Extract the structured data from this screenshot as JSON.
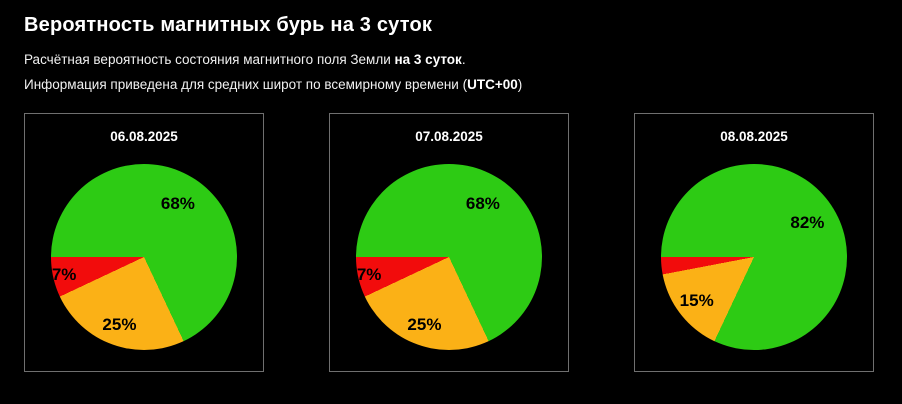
{
  "header": {
    "title": "Вероятность магнитных бурь на 3 суток",
    "line1": {
      "normal": "Расчётная вероятность состояния магнитного поля Земли ",
      "bold": "на 3 суток",
      "tail": "."
    },
    "line2": {
      "normal": "Информация приведена для средних широт по всемирному времени (",
      "bold": "UTC+00",
      "tail": ")"
    }
  },
  "colors": {
    "background": "#000000",
    "panel_border": "#6f6f6f",
    "quiet_green": "#2DCB14",
    "disturbed_orange": "#FBB116",
    "storm_red": "#F20C0C",
    "label_text": "#000000",
    "heading_text": "#FFFFFF"
  },
  "chart_data": [
    {
      "type": "pie",
      "title": "06.08.2025",
      "start_angle_deg": 270,
      "direction": "clockwise",
      "legend": "none",
      "slices": [
        {
          "name": "quiet",
          "label": "68%",
          "value": 68,
          "color": "#2DCB14"
        },
        {
          "name": "disturbed",
          "label": "25%",
          "value": 25,
          "color": "#FBB116"
        },
        {
          "name": "storm",
          "label": "7%",
          "value": 7,
          "color": "#F20C0C"
        }
      ]
    },
    {
      "type": "pie",
      "title": "07.08.2025",
      "start_angle_deg": 270,
      "direction": "clockwise",
      "legend": "none",
      "slices": [
        {
          "name": "quiet",
          "label": "68%",
          "value": 68,
          "color": "#2DCB14"
        },
        {
          "name": "disturbed",
          "label": "25%",
          "value": 25,
          "color": "#FBB116"
        },
        {
          "name": "storm",
          "label": "7%",
          "value": 7,
          "color": "#F20C0C"
        }
      ]
    },
    {
      "type": "pie",
      "title": "08.08.2025",
      "start_angle_deg": 270,
      "direction": "clockwise",
      "legend": "none",
      "slices": [
        {
          "name": "quiet",
          "label": "82%",
          "value": 82,
          "color": "#2DCB14"
        },
        {
          "name": "disturbed",
          "label": "15%",
          "value": 15,
          "color": "#FBB116"
        },
        {
          "name": "storm",
          "label": "",
          "value": 3,
          "color": "#F20C0C"
        }
      ]
    }
  ]
}
